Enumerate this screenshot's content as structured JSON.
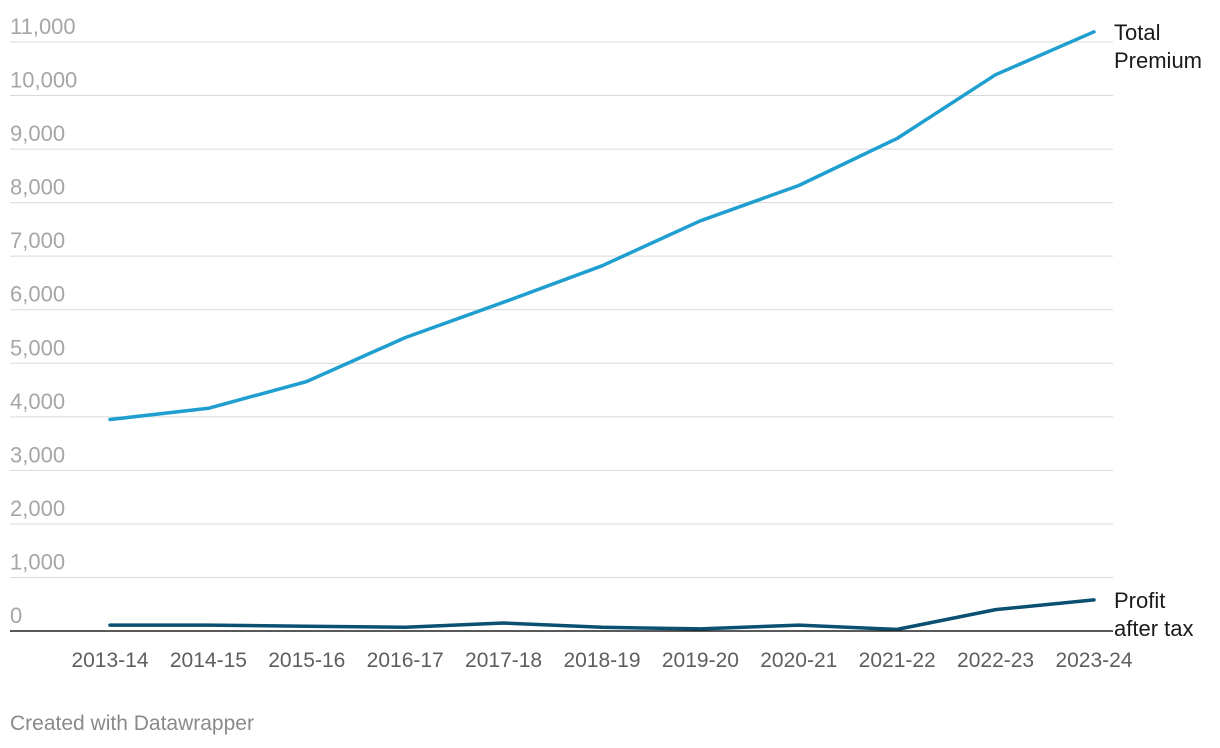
{
  "chart_data": {
    "type": "line",
    "title": "",
    "xlabel": "",
    "ylabel": "",
    "categories": [
      "2013-14",
      "2014-15",
      "2015-16",
      "2016-17",
      "2017-18",
      "2018-19",
      "2019-20",
      "2020-21",
      "2021-22",
      "2022-23",
      "2023-24"
    ],
    "ylim": [
      0,
      11000
    ],
    "yticks": [
      0,
      1000,
      2000,
      3000,
      4000,
      5000,
      6000,
      7000,
      8000,
      9000,
      10000,
      11000
    ],
    "ytick_labels": [
      "0",
      "1,000",
      "2,000",
      "3,000",
      "4,000",
      "5,000",
      "6,000",
      "7,000",
      "8,000",
      "9,000",
      "10,000",
      "11,000"
    ],
    "grid": true,
    "legend": "direct labels at right end of lines",
    "series": [
      {
        "name": "Total Premium",
        "label_lines": [
          "Total",
          "Premium"
        ],
        "color": "#1f9fcf",
        "values": [
          3950,
          4160,
          4660,
          5480,
          6140,
          6820,
          7660,
          8320,
          9200,
          10390,
          11190
        ]
      },
      {
        "name": "Profit after tax",
        "label_lines": [
          "Profit",
          "after tax"
        ],
        "color": "#0b4f71",
        "values": [
          110,
          110,
          90,
          70,
          150,
          70,
          40,
          110,
          30,
          400,
          580
        ]
      }
    ]
  },
  "footer": {
    "credit": "Created with Datawrapper"
  }
}
